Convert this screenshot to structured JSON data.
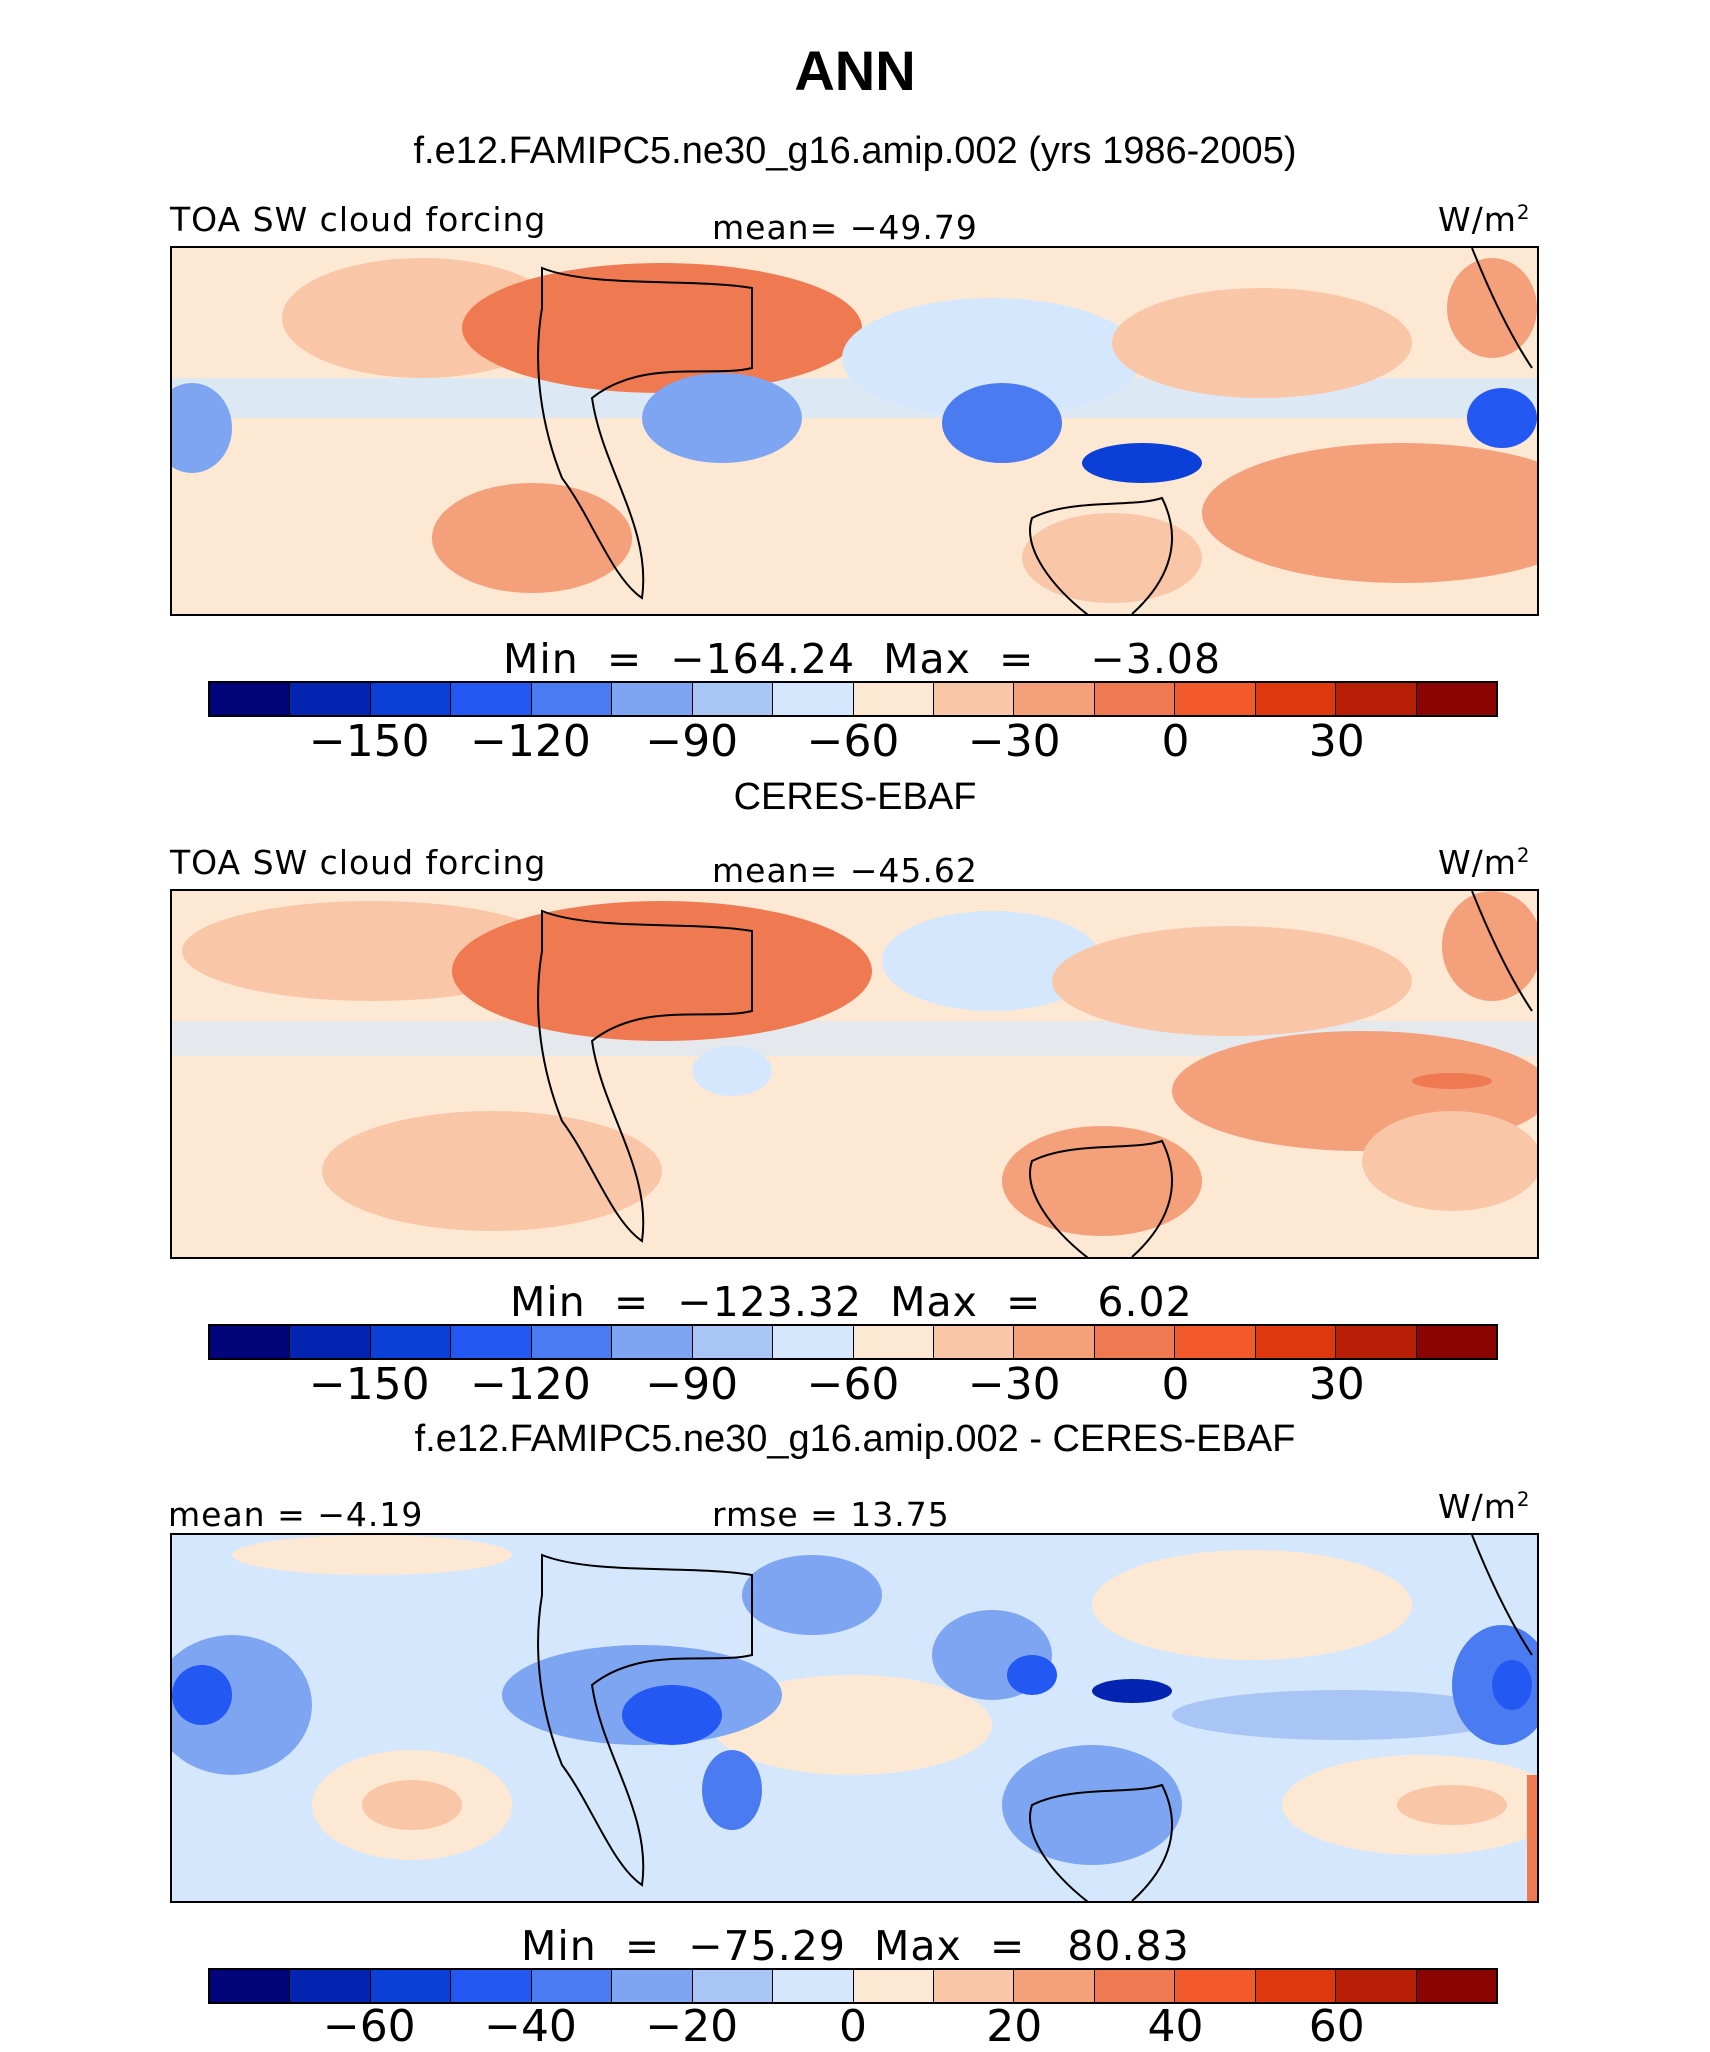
{
  "figure": {
    "title": "ANN",
    "units": "W/m",
    "units_sup": "2"
  },
  "colors": [
    "#02047a",
    "#0224b0",
    "#0a3fd8",
    "#2358f2",
    "#4a7bf0",
    "#7ea5f2",
    "#a8c5f6",
    "#d5e7fc",
    "#fde8d4",
    "#f9c7a7",
    "#f4a07b",
    "#ef7a52",
    "#f25a2c",
    "#e0380e",
    "#b71e06",
    "#8a0402"
  ],
  "panels": [
    {
      "id": "model",
      "subtitle": "f.e12.FAMIPC5.ne30_g16.amip.002 (yrs 1986-2005)",
      "left_label": "TOA SW cloud forcing",
      "center_label": "mean=  −49.79",
      "minmax": "Min  =  −164.24  Max  =    −3.08"
    },
    {
      "id": "obs",
      "subtitle": "CERES-EBAF",
      "left_label": "TOA SW cloud forcing",
      "center_label": "mean=  −45.62",
      "minmax": "Min  =  −123.32  Max  =    6.02"
    },
    {
      "id": "diff",
      "subtitle": "f.e12.FAMIPC5.ne30_g16.amip.002 - CERES-EBAF",
      "left_label": "mean  =   −4.19",
      "center_label": "rmse  =   13.75",
      "minmax": "Min  =  −75.29  Max  =   80.83"
    }
  ],
  "chart_data": [
    {
      "type": "heatmap",
      "title": "f.e12.FAMIPC5.ne30_g16.amip.002 (yrs 1986-2005)",
      "variable": "TOA SW cloud forcing",
      "units": "W/m2",
      "mean": -49.79,
      "min": -164.24,
      "max": -3.08,
      "colorbar_levels": [
        -165,
        -150,
        -135,
        -120,
        -105,
        -90,
        -75,
        -60,
        -45,
        -30,
        -15,
        0,
        15,
        30,
        45
      ],
      "colorbar_tick_labels": [
        "−150",
        "−120",
        "−90",
        "−60",
        "−30",
        "0",
        "30"
      ],
      "colorbar_tick_values": [
        -150,
        -120,
        -90,
        -60,
        -30,
        0,
        30
      ]
    },
    {
      "type": "heatmap",
      "title": "CERES-EBAF",
      "variable": "TOA SW cloud forcing",
      "units": "W/m2",
      "mean": -45.62,
      "min": -123.32,
      "max": 6.02,
      "colorbar_levels": [
        -165,
        -150,
        -135,
        -120,
        -105,
        -90,
        -75,
        -60,
        -45,
        -30,
        -15,
        0,
        15,
        30,
        45
      ],
      "colorbar_tick_labels": [
        "−150",
        "−120",
        "−90",
        "−60",
        "−30",
        "0",
        "30"
      ],
      "colorbar_tick_values": [
        -150,
        -120,
        -90,
        -60,
        -30,
        0,
        30
      ]
    },
    {
      "type": "heatmap",
      "title": "f.e12.FAMIPC5.ne30_g16.amip.002 - CERES-EBAF",
      "units": "W/m2",
      "mean": -4.19,
      "rmse": 13.75,
      "min": -75.29,
      "max": 80.83,
      "colorbar_levels": [
        -70,
        -60,
        -50,
        -40,
        -30,
        -20,
        -10,
        0,
        10,
        20,
        30,
        40,
        50,
        60,
        70
      ],
      "colorbar_tick_labels": [
        "−60",
        "−40",
        "−20",
        "0",
        "20",
        "40",
        "60"
      ],
      "colorbar_tick_values": [
        -60,
        -40,
        -20,
        0,
        20,
        40,
        60
      ]
    }
  ]
}
